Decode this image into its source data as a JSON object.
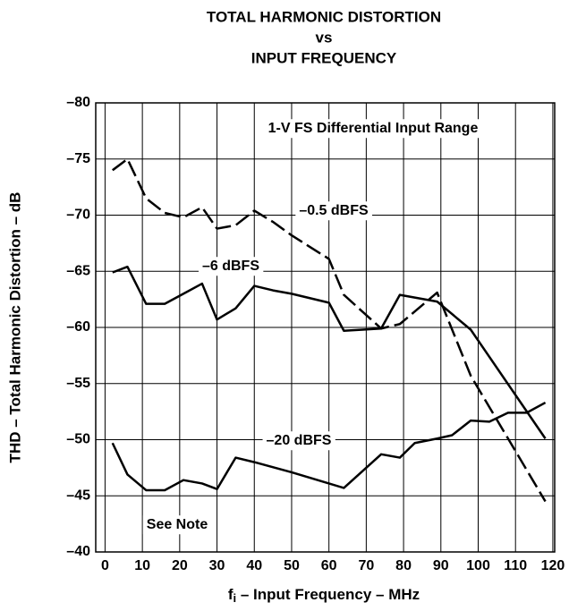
{
  "chart_data": {
    "type": "line",
    "title": [
      "TOTAL HARMONIC DISTORTION",
      "vs",
      "INPUT FREQUENCY"
    ],
    "x_label": [
      "f",
      "i",
      " – Input Frequency – MHz"
    ],
    "y_label": "THD – Total Harmonic Distortion – dB",
    "annotations": [
      "1-V FS Differential Input Range",
      "See Note"
    ],
    "xlim": [
      -2.5,
      120.5
    ],
    "xticks": [
      0,
      10,
      20,
      30,
      40,
      50,
      60,
      70,
      80,
      90,
      100,
      110,
      120
    ],
    "ylim": [
      -40,
      -80
    ],
    "yticks": [
      {
        "value": -80,
        "label": "–80"
      },
      {
        "value": -75,
        "label": "–75"
      },
      {
        "value": -70,
        "label": "–70"
      },
      {
        "value": -65,
        "label": "–65"
      },
      {
        "value": -60,
        "label": "–60"
      },
      {
        "value": -55,
        "label": "–55"
      },
      {
        "value": -50,
        "label": "–50"
      },
      {
        "value": -45,
        "label": "–45"
      },
      {
        "value": -40,
        "label": "–40"
      }
    ],
    "grid": true,
    "series": [
      {
        "name": "–0.5 dBFS",
        "color": "#000000",
        "dash": true,
        "x": [
          2,
          6,
          11,
          16,
          21,
          26,
          30,
          35,
          40,
          45,
          50,
          60,
          64,
          74,
          79,
          89,
          98,
          118
        ],
        "values": [
          -74.0,
          -75.0,
          -71.5,
          -70.2,
          -69.8,
          -70.7,
          -68.8,
          -69.1,
          -70.4,
          -69.4,
          -68.2,
          -66.1,
          -62.9,
          -59.9,
          -60.3,
          -63.1,
          -55.7,
          -44.5
        ]
      },
      {
        "name": "–6 dBFS",
        "color": "#000000",
        "dash": false,
        "x": [
          2,
          6,
          11,
          16,
          21,
          26,
          30,
          35,
          40,
          45,
          50,
          60,
          64,
          74,
          79,
          89,
          98,
          118
        ],
        "values": [
          -64.9,
          -65.4,
          -62.1,
          -62.1,
          -63.0,
          -63.9,
          -60.7,
          -61.7,
          -63.7,
          -63.3,
          -63.0,
          -62.2,
          -59.7,
          -59.9,
          -62.9,
          -62.3,
          -59.8,
          -50.1
        ]
      },
      {
        "name": "–20 dBFS",
        "color": "#000000",
        "dash": false,
        "x": [
          2,
          6,
          11,
          16,
          21,
          26,
          30,
          35,
          40,
          50,
          60,
          64,
          74,
          79,
          83,
          89,
          93,
          98,
          103,
          108,
          113,
          118
        ],
        "values": [
          -49.7,
          -46.9,
          -45.5,
          -45.5,
          -46.4,
          -46.1,
          -45.6,
          -48.4,
          -48.0,
          -47.1,
          -46.1,
          -45.7,
          -48.7,
          -48.4,
          -49.7,
          -50.1,
          -50.4,
          -51.7,
          -51.6,
          -52.4,
          -52.4,
          -53.3
        ]
      }
    ]
  }
}
